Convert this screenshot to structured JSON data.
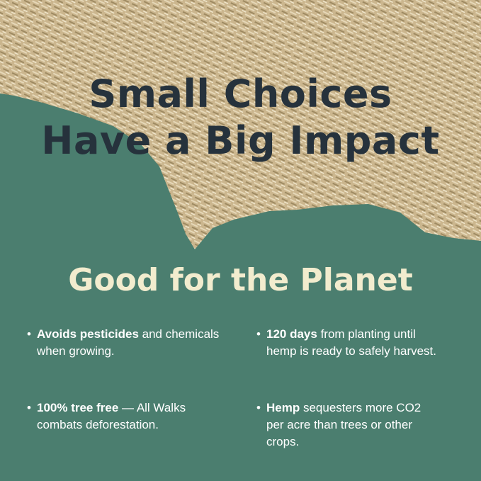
{
  "headline": {
    "line1": "Small Choices",
    "line2": "Have a Big Impact"
  },
  "subtitle": "Good for the Planet",
  "bullets": [
    {
      "bold": "Avoids pesticides",
      "text": " and chemicals when growing."
    },
    {
      "bold": "120 days",
      "text": " from planting until hemp is ready to safely harvest."
    },
    {
      "bold": "100% tree free",
      "text": " — All Walks combats deforestation."
    },
    {
      "bold": "Hemp",
      "text": " sequesters more CO2 per acre than trees or other crops."
    }
  ],
  "colors": {
    "background": "#4b7e6f",
    "headline": "#26323c",
    "subtitle": "#f2ecce",
    "hemp": "#cdb992"
  }
}
